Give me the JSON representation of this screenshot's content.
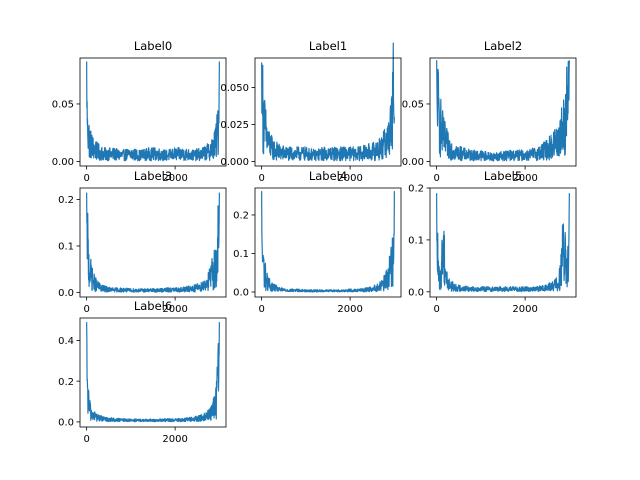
{
  "figure": {
    "background": "#ffffff",
    "line_color": "#1f77b4"
  },
  "chart_data": [
    {
      "type": "line",
      "title": "Label0",
      "xlabel": "",
      "ylabel": "",
      "xlim": [
        -150,
        3150
      ],
      "ylim": [
        -0.004,
        0.09
      ],
      "xticks": [
        0,
        2000
      ],
      "xtick_labels": [
        "0",
        "2000"
      ],
      "yticks": [
        0.0,
        0.05
      ],
      "ytick_labels": [
        "0.00",
        "0.05"
      ],
      "series": [
        {
          "x": [
            0,
            15,
            40,
            80,
            150,
            250,
            400,
            600,
            800,
            1000,
            1200,
            1400,
            1600,
            1800,
            2000,
            2200,
            2400,
            2600,
            2750,
            2850,
            2920,
            2960,
            2985,
            3000
          ],
          "y": [
            0.087,
            0.045,
            0.022,
            0.015,
            0.011,
            0.008,
            0.006,
            0.006,
            0.005,
            0.006,
            0.005,
            0.006,
            0.006,
            0.005,
            0.006,
            0.006,
            0.005,
            0.006,
            0.008,
            0.011,
            0.016,
            0.024,
            0.045,
            0.087
          ]
        }
      ]
    },
    {
      "type": "line",
      "title": "Label1",
      "xlabel": "",
      "ylabel": "",
      "xlim": [
        -150,
        3150
      ],
      "ylim": [
        -0.003,
        0.07
      ],
      "xticks": [
        0,
        2000
      ],
      "xtick_labels": [
        "0",
        "2000"
      ],
      "yticks": [
        0.0,
        0.025,
        0.05
      ],
      "ytick_labels": [
        "0.000",
        "0.025",
        "0.050"
      ],
      "series": [
        {
          "x": [
            0,
            15,
            40,
            80,
            150,
            250,
            400,
            600,
            800,
            1000,
            1200,
            1400,
            1600,
            1800,
            2000,
            2200,
            2400,
            2600,
            2750,
            2850,
            2920,
            2960,
            2985,
            3000
          ],
          "y": [
            0.067,
            0.045,
            0.03,
            0.02,
            0.012,
            0.008,
            0.006,
            0.005,
            0.005,
            0.005,
            0.004,
            0.005,
            0.005,
            0.005,
            0.005,
            0.005,
            0.006,
            0.007,
            0.01,
            0.015,
            0.022,
            0.032,
            0.054,
            0.03
          ]
        }
      ]
    },
    {
      "type": "line",
      "title": "Label2",
      "xlabel": "",
      "ylabel": "",
      "xlim": [
        -150,
        3150
      ],
      "ylim": [
        -0.004,
        0.09
      ],
      "xticks": [
        0,
        2000
      ],
      "xtick_labels": [
        "0",
        "2000"
      ],
      "yticks": [
        0.0,
        0.05
      ],
      "ytick_labels": [
        "0.00",
        "0.05"
      ],
      "series": [
        {
          "x": [
            0,
            15,
            40,
            80,
            150,
            250,
            400,
            600,
            800,
            1000,
            1200,
            1400,
            1600,
            1800,
            2000,
            2200,
            2400,
            2600,
            2750,
            2850,
            2920,
            2960,
            2985,
            3000
          ],
          "y": [
            0.088,
            0.055,
            0.04,
            0.03,
            0.02,
            0.013,
            0.008,
            0.006,
            0.005,
            0.005,
            0.004,
            0.004,
            0.005,
            0.005,
            0.005,
            0.006,
            0.008,
            0.012,
            0.018,
            0.026,
            0.036,
            0.05,
            0.07,
            0.088
          ]
        }
      ]
    },
    {
      "type": "line",
      "title": "Label3",
      "xlabel": "",
      "ylabel": "",
      "xlim": [
        -150,
        3150
      ],
      "ylim": [
        -0.01,
        0.225
      ],
      "xticks": [
        0,
        2000
      ],
      "xtick_labels": [
        "0",
        "2000"
      ],
      "yticks": [
        0.0,
        0.1,
        0.2
      ],
      "ytick_labels": [
        "0.0",
        "0.1",
        "0.2"
      ],
      "series": [
        {
          "x": [
            0,
            15,
            40,
            80,
            150,
            250,
            400,
            600,
            800,
            1000,
            1200,
            1400,
            1600,
            1800,
            2000,
            2200,
            2400,
            2600,
            2750,
            2850,
            2920,
            2960,
            2985,
            3000
          ],
          "y": [
            0.215,
            0.12,
            0.06,
            0.04,
            0.022,
            0.012,
            0.007,
            0.005,
            0.005,
            0.004,
            0.004,
            0.004,
            0.004,
            0.005,
            0.005,
            0.006,
            0.008,
            0.012,
            0.022,
            0.04,
            0.06,
            0.08,
            0.12,
            0.215
          ]
        }
      ]
    },
    {
      "type": "line",
      "title": "Label4",
      "xlabel": "",
      "ylabel": "",
      "xlim": [
        -150,
        3150
      ],
      "ylim": [
        -0.013,
        0.27
      ],
      "xticks": [
        0,
        2000
      ],
      "xtick_labels": [
        "0",
        "2000"
      ],
      "yticks": [
        0.0,
        0.1,
        0.2
      ],
      "ytick_labels": [
        "0.0",
        "0.1",
        "0.2"
      ],
      "series": [
        {
          "x": [
            0,
            15,
            40,
            80,
            150,
            250,
            400,
            600,
            800,
            1000,
            1200,
            1400,
            1600,
            1800,
            2000,
            2200,
            2400,
            2600,
            2750,
            2850,
            2920,
            2960,
            2985,
            3000
          ],
          "y": [
            0.262,
            0.12,
            0.06,
            0.04,
            0.02,
            0.012,
            0.006,
            0.004,
            0.004,
            0.003,
            0.003,
            0.003,
            0.003,
            0.003,
            0.004,
            0.004,
            0.006,
            0.01,
            0.018,
            0.035,
            0.06,
            0.09,
            0.14,
            0.262
          ]
        }
      ]
    },
    {
      "type": "line",
      "title": "Label5",
      "xlabel": "",
      "ylabel": "",
      "xlim": [
        -150,
        3150
      ],
      "ylim": [
        -0.01,
        0.2
      ],
      "xticks": [
        0,
        2000
      ],
      "xtick_labels": [
        "0",
        "2000"
      ],
      "yticks": [
        0.0,
        0.1,
        0.2
      ],
      "ytick_labels": [
        "0.0",
        "0.1",
        "0.2"
      ],
      "series": [
        {
          "x": [
            0,
            15,
            40,
            80,
            120,
            160,
            200,
            250,
            400,
            600,
            800,
            1000,
            1200,
            1400,
            1600,
            1800,
            2000,
            2200,
            2400,
            2600,
            2750,
            2820,
            2860,
            2900,
            2950,
            2985,
            3000
          ],
          "y": [
            0.19,
            0.08,
            0.03,
            0.02,
            0.06,
            0.08,
            0.04,
            0.015,
            0.008,
            0.006,
            0.005,
            0.005,
            0.005,
            0.005,
            0.005,
            0.005,
            0.005,
            0.005,
            0.006,
            0.01,
            0.015,
            0.04,
            0.08,
            0.06,
            0.03,
            0.08,
            0.19
          ]
        }
      ]
    },
    {
      "type": "line",
      "title": "Label6",
      "xlabel": "",
      "ylabel": "",
      "xlim": [
        -150,
        3150
      ],
      "ylim": [
        -0.025,
        0.51
      ],
      "xticks": [
        0,
        2000
      ],
      "xtick_labels": [
        "0",
        "2000"
      ],
      "yticks": [
        0.0,
        0.2,
        0.4
      ],
      "ytick_labels": [
        "0.0",
        "0.2",
        "0.4"
      ],
      "series": [
        {
          "x": [
            0,
            15,
            40,
            80,
            150,
            250,
            400,
            600,
            800,
            1000,
            1200,
            1400,
            1600,
            1800,
            2000,
            2200,
            2400,
            2600,
            2750,
            2850,
            2920,
            2960,
            2985,
            3000
          ],
          "y": [
            0.49,
            0.22,
            0.09,
            0.05,
            0.03,
            0.02,
            0.012,
            0.01,
            0.008,
            0.008,
            0.007,
            0.007,
            0.007,
            0.008,
            0.008,
            0.01,
            0.012,
            0.018,
            0.03,
            0.05,
            0.09,
            0.15,
            0.25,
            0.49
          ]
        }
      ]
    }
  ]
}
